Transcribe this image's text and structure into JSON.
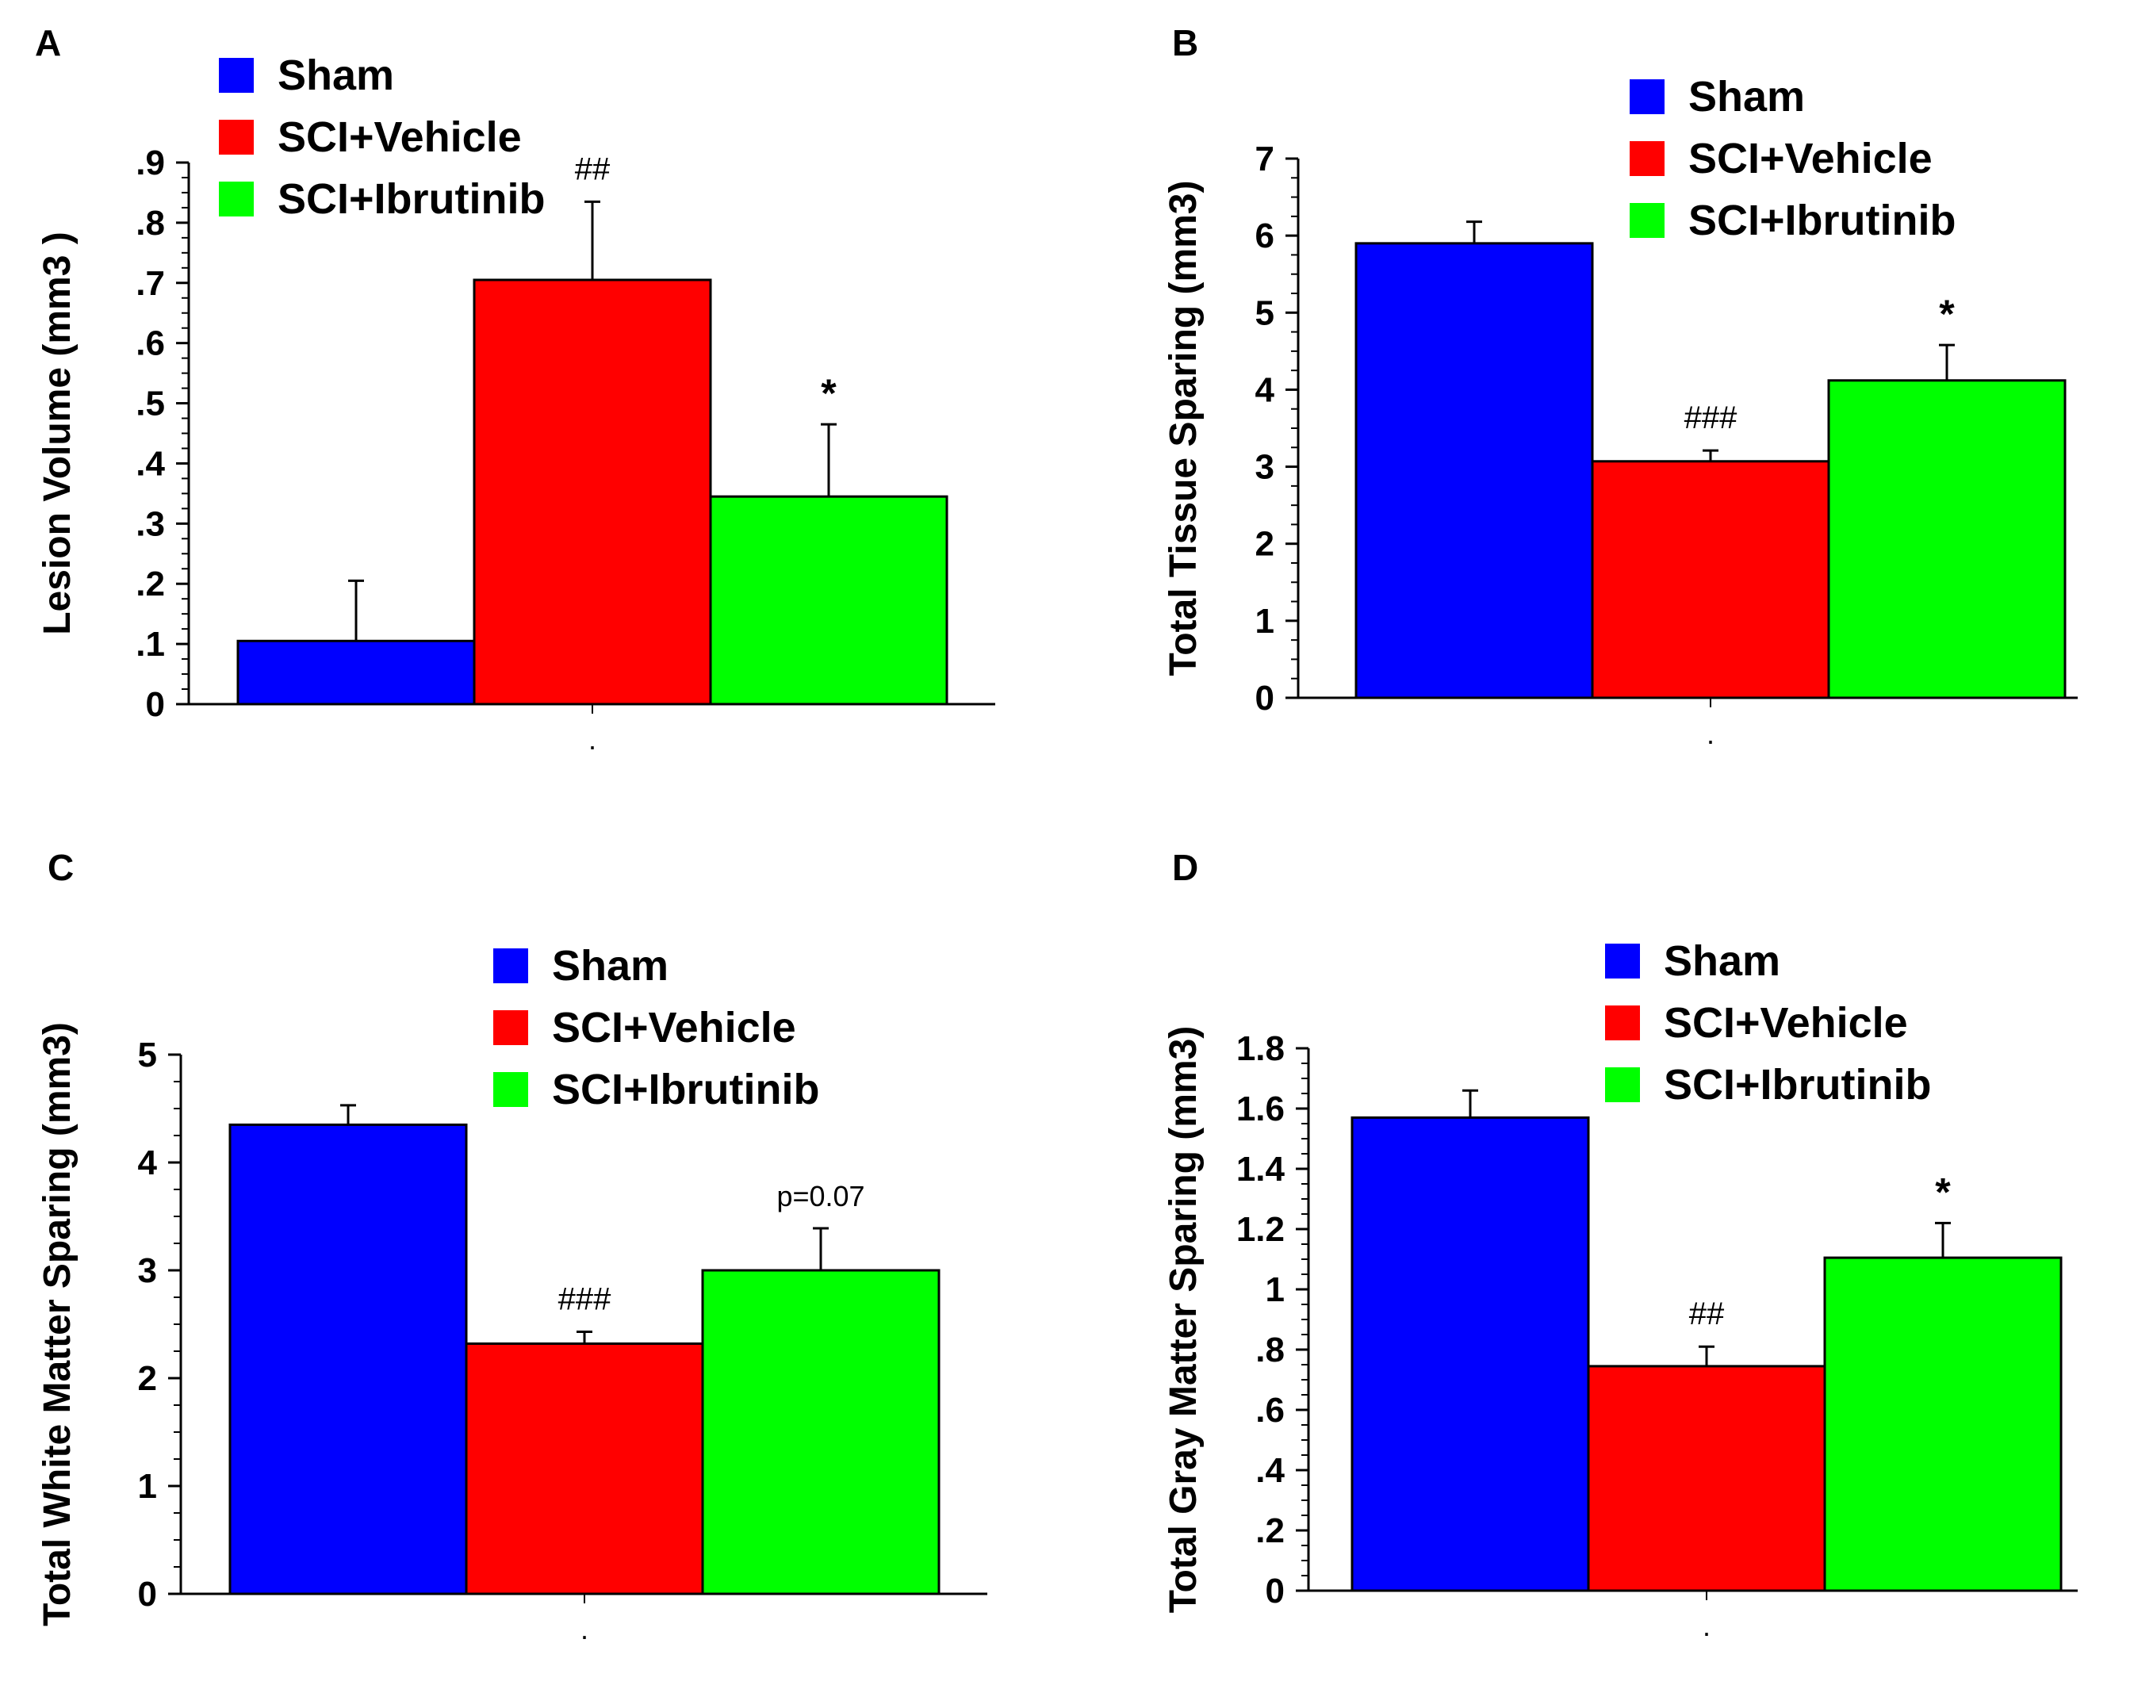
{
  "legend": {
    "sham": "Sham",
    "vehicle": "SCI+Vehicle",
    "ibrutinib": "SCI+Ibrutinib"
  },
  "colors": {
    "sham": "#0000ff",
    "vehicle": "#ff0000",
    "ibrutinib": "#00ff00"
  },
  "chart_data": [
    {
      "panel": "A",
      "type": "bar",
      "ylabel": "Lesion Volume (mm3 )",
      "ylim": [
        0,
        0.9
      ],
      "yticks": [
        0,
        0.1,
        0.2,
        0.3,
        0.4,
        0.5,
        0.6,
        0.7,
        0.8,
        0.9
      ],
      "ytick_labels": [
        "0",
        ".1",
        ".2",
        ".3",
        ".4",
        ".5",
        ".6",
        ".7",
        ".8",
        ".9"
      ],
      "xtick_label": ".",
      "categories": [
        "Sham",
        "SCI+Vehicle",
        "SCI+Ibrutinib"
      ],
      "values": [
        0.105,
        0.705,
        0.345
      ],
      "errors": [
        0.1,
        0.13,
        0.12
      ],
      "annotations": [
        "",
        "##",
        "*"
      ],
      "legend_position": "top-left"
    },
    {
      "panel": "B",
      "type": "bar",
      "ylabel": "Total Tissue Sparing (mm3)",
      "ylim": [
        0,
        7
      ],
      "yticks": [
        0,
        1,
        2,
        3,
        4,
        5,
        6,
        7
      ],
      "ytick_labels": [
        "0",
        "1",
        "2",
        "3",
        "4",
        "5",
        "6",
        "7"
      ],
      "xtick_label": ".",
      "categories": [
        "Sham",
        "SCI+Vehicle",
        "SCI+Ibrutinib"
      ],
      "values": [
        5.9,
        3.07,
        4.12
      ],
      "errors": [
        0.28,
        0.14,
        0.46
      ],
      "annotations": [
        "",
        "###",
        "*"
      ],
      "legend_position": "top-right"
    },
    {
      "panel": "C",
      "type": "bar",
      "ylabel": "Total White Matter Sparing (mm3)",
      "ylim": [
        0,
        5
      ],
      "yticks": [
        0,
        1,
        2,
        3,
        4,
        5
      ],
      "ytick_labels": [
        "0",
        "1",
        "2",
        "3",
        "4",
        "5"
      ],
      "xtick_label": ".",
      "categories": [
        "Sham",
        "SCI+Vehicle",
        "SCI+Ibrutinib"
      ],
      "values": [
        4.35,
        2.32,
        3.0
      ],
      "errors": [
        0.18,
        0.11,
        0.39
      ],
      "annotations": [
        "",
        "###",
        "p=0.07"
      ],
      "legend_position": "top-right"
    },
    {
      "panel": "D",
      "type": "bar",
      "ylabel": "Total Gray Matter Sparing (mm3)",
      "ylim": [
        0,
        1.8
      ],
      "yticks": [
        0,
        0.2,
        0.4,
        0.6,
        0.8,
        1,
        1.2,
        1.4,
        1.6,
        1.8
      ],
      "ytick_labels": [
        "0",
        ".2",
        ".4",
        ".6",
        ".8",
        "1",
        "1.2",
        "1.4",
        "1.6",
        "1.8"
      ],
      "xtick_label": ".",
      "categories": [
        "Sham",
        "SCI+Vehicle",
        "SCI+Ibrutinib"
      ],
      "values": [
        1.57,
        0.745,
        1.105
      ],
      "errors": [
        0.09,
        0.065,
        0.115
      ],
      "annotations": [
        "",
        "##",
        "*"
      ],
      "legend_position": "top-right"
    }
  ]
}
